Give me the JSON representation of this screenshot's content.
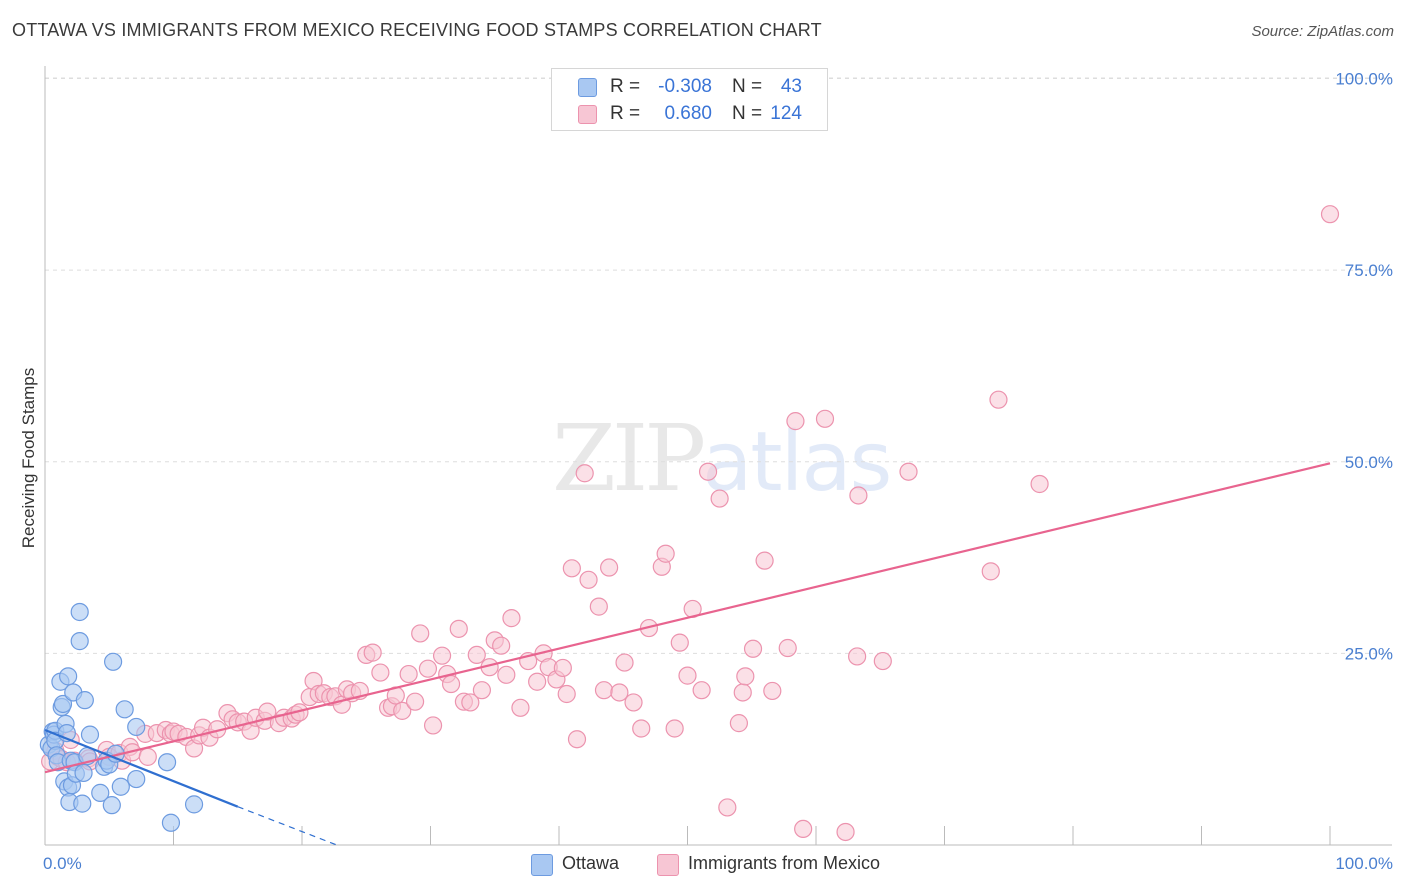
{
  "title": "OTTAWA VS IMMIGRANTS FROM MEXICO RECEIVING FOOD STAMPS CORRELATION CHART",
  "source": "Source: ZipAtlas.com",
  "watermark": {
    "zip": "ZIP",
    "atlas": "atlas"
  },
  "legend": {
    "rows": [
      {
        "name": "Ottawa",
        "r_label": "R =",
        "r_value": "-0.308",
        "n_label": "N =",
        "n_value": "43"
      },
      {
        "name": "Immigrants from Mexico",
        "r_label": "R =",
        "r_value": "0.680",
        "n_label": "N =",
        "n_value": "124"
      }
    ]
  },
  "colors": {
    "ottawa_fill": "#a9c8f2",
    "ottawa_stroke": "#6d9be0",
    "ottawa_line": "#2f6fd0",
    "mexico_fill": "#f7c6d4",
    "mexico_stroke": "#ec93ae",
    "mexico_line": "#e8648f",
    "tick": "#4a7fd0",
    "grid": "#dddddd"
  },
  "chart_data": {
    "type": "scatter",
    "title": "OTTAWA VS IMMIGRANTS FROM MEXICO RECEIVING FOOD STAMPS CORRELATION CHART",
    "xlabel": "",
    "ylabel": "Receiving Food Stamps",
    "xlim": [
      0,
      100
    ],
    "ylim": [
      0,
      100
    ],
    "x_tick_labels": {
      "left": "0.0%",
      "right": "100.0%"
    },
    "y_ticks": [
      {
        "value": 25,
        "label": "25.0%"
      },
      {
        "value": 50,
        "label": "50.0%"
      },
      {
        "value": 75,
        "label": "75.0%"
      },
      {
        "value": 100,
        "label": "100.0%"
      }
    ],
    "grid": true,
    "legend_position": "top-center",
    "series": [
      {
        "name": "Ottawa",
        "trend": {
          "x0": 0,
          "y0": 15.0,
          "x1": 15,
          "y1": 5.0,
          "dash_to_x": 22.7,
          "dash_to_y": 0
        },
        "points": [
          [
            0.3,
            13.1
          ],
          [
            0.5,
            12.6
          ],
          [
            0.6,
            14.8
          ],
          [
            0.7,
            14.4
          ],
          [
            0.8,
            14.9
          ],
          [
            0.8,
            13.6
          ],
          [
            0.9,
            11.7
          ],
          [
            1.0,
            10.8
          ],
          [
            1.2,
            21.3
          ],
          [
            1.3,
            18.0
          ],
          [
            1.4,
            18.4
          ],
          [
            1.5,
            8.3
          ],
          [
            1.6,
            15.8
          ],
          [
            1.7,
            14.6
          ],
          [
            1.8,
            22.0
          ],
          [
            1.8,
            7.5
          ],
          [
            1.9,
            5.6
          ],
          [
            2.0,
            11.0
          ],
          [
            2.1,
            7.8
          ],
          [
            2.2,
            19.9
          ],
          [
            2.3,
            10.8
          ],
          [
            2.4,
            9.3
          ],
          [
            2.7,
            30.4
          ],
          [
            2.7,
            26.6
          ],
          [
            2.9,
            5.4
          ],
          [
            3.0,
            9.4
          ],
          [
            3.1,
            18.9
          ],
          [
            3.3,
            11.6
          ],
          [
            3.5,
            14.4
          ],
          [
            4.3,
            6.8
          ],
          [
            4.6,
            10.2
          ],
          [
            4.8,
            11.0
          ],
          [
            5.0,
            10.5
          ],
          [
            5.2,
            5.2
          ],
          [
            5.3,
            23.9
          ],
          [
            5.5,
            11.9
          ],
          [
            5.9,
            7.6
          ],
          [
            6.2,
            17.7
          ],
          [
            7.1,
            8.6
          ],
          [
            7.1,
            15.4
          ],
          [
            9.5,
            10.8
          ],
          [
            9.8,
            2.9
          ],
          [
            11.6,
            5.3
          ]
        ]
      },
      {
        "name": "Immigrants from Mexico",
        "trend": {
          "x0": 0,
          "y0": 9.5,
          "x1": 100,
          "y1": 49.8
        },
        "points": [
          [
            0.4,
            10.9
          ],
          [
            0.8,
            12.3
          ],
          [
            1.0,
            11.5
          ],
          [
            1.3,
            11.2
          ],
          [
            1.7,
            10.8
          ],
          [
            2.0,
            13.7
          ],
          [
            2.3,
            11.0
          ],
          [
            3.4,
            11.3
          ],
          [
            3.5,
            10.9
          ],
          [
            4.8,
            12.4
          ],
          [
            5.0,
            11.5
          ],
          [
            5.8,
            12.0
          ],
          [
            6.0,
            11.0
          ],
          [
            6.6,
            12.8
          ],
          [
            6.8,
            12.1
          ],
          [
            7.8,
            14.5
          ],
          [
            8.0,
            11.5
          ],
          [
            8.7,
            14.6
          ],
          [
            9.4,
            15.0
          ],
          [
            9.8,
            14.5
          ],
          [
            10.0,
            14.8
          ],
          [
            10.4,
            14.5
          ],
          [
            11.0,
            14.1
          ],
          [
            11.6,
            12.6
          ],
          [
            12.0,
            14.3
          ],
          [
            12.3,
            15.3
          ],
          [
            12.8,
            14.0
          ],
          [
            13.4,
            15.1
          ],
          [
            14.2,
            17.2
          ],
          [
            14.6,
            16.4
          ],
          [
            15.0,
            16.0
          ],
          [
            15.5,
            16.1
          ],
          [
            16.0,
            14.9
          ],
          [
            16.4,
            16.6
          ],
          [
            17.1,
            16.2
          ],
          [
            17.3,
            17.4
          ],
          [
            18.2,
            15.9
          ],
          [
            18.6,
            16.6
          ],
          [
            19.2,
            16.5
          ],
          [
            19.5,
            17.0
          ],
          [
            19.8,
            17.3
          ],
          [
            20.6,
            19.3
          ],
          [
            20.9,
            21.4
          ],
          [
            21.3,
            19.7
          ],
          [
            21.7,
            19.8
          ],
          [
            22.2,
            19.3
          ],
          [
            22.6,
            19.4
          ],
          [
            23.1,
            18.3
          ],
          [
            23.5,
            20.3
          ],
          [
            23.9,
            19.8
          ],
          [
            24.5,
            20.1
          ],
          [
            25.0,
            24.8
          ],
          [
            25.5,
            25.1
          ],
          [
            26.1,
            22.5
          ],
          [
            26.7,
            17.9
          ],
          [
            27.0,
            18.1
          ],
          [
            27.3,
            19.5
          ],
          [
            27.8,
            17.5
          ],
          [
            28.3,
            22.3
          ],
          [
            28.8,
            18.7
          ],
          [
            29.2,
            27.6
          ],
          [
            29.8,
            23.0
          ],
          [
            30.2,
            15.6
          ],
          [
            30.9,
            24.7
          ],
          [
            31.3,
            22.3
          ],
          [
            31.6,
            21.0
          ],
          [
            32.2,
            28.2
          ],
          [
            32.6,
            18.7
          ],
          [
            33.1,
            18.6
          ],
          [
            33.6,
            24.8
          ],
          [
            34.0,
            20.2
          ],
          [
            34.6,
            23.2
          ],
          [
            35.0,
            26.7
          ],
          [
            35.5,
            26.0
          ],
          [
            35.9,
            22.2
          ],
          [
            36.3,
            29.6
          ],
          [
            37.0,
            17.9
          ],
          [
            37.6,
            24.0
          ],
          [
            38.3,
            21.3
          ],
          [
            38.8,
            25.0
          ],
          [
            39.2,
            23.2
          ],
          [
            39.8,
            21.6
          ],
          [
            40.3,
            23.1
          ],
          [
            40.6,
            19.7
          ],
          [
            41.0,
            36.1
          ],
          [
            41.4,
            13.8
          ],
          [
            42.0,
            48.5
          ],
          [
            42.3,
            34.6
          ],
          [
            43.1,
            31.1
          ],
          [
            43.5,
            20.2
          ],
          [
            43.9,
            36.2
          ],
          [
            44.7,
            19.9
          ],
          [
            45.1,
            23.8
          ],
          [
            45.8,
            18.6
          ],
          [
            46.4,
            15.2
          ],
          [
            47.0,
            28.3
          ],
          [
            48.0,
            36.3
          ],
          [
            48.3,
            38.0
          ],
          [
            49.0,
            15.2
          ],
          [
            49.4,
            26.4
          ],
          [
            50.0,
            22.1
          ],
          [
            50.4,
            30.8
          ],
          [
            51.1,
            20.2
          ],
          [
            51.6,
            48.7
          ],
          [
            52.5,
            45.2
          ],
          [
            53.1,
            4.9
          ],
          [
            54.0,
            15.9
          ],
          [
            54.3,
            19.9
          ],
          [
            54.5,
            22.0
          ],
          [
            55.1,
            25.6
          ],
          [
            56.0,
            37.1
          ],
          [
            56.6,
            20.1
          ],
          [
            57.8,
            25.7
          ],
          [
            58.4,
            55.3
          ],
          [
            59.0,
            2.1
          ],
          [
            60.7,
            55.6
          ],
          [
            62.3,
            1.7
          ],
          [
            63.2,
            24.6
          ],
          [
            63.3,
            45.6
          ],
          [
            65.2,
            24.0
          ],
          [
            67.2,
            48.7
          ],
          [
            73.6,
            35.7
          ],
          [
            74.2,
            58.1
          ],
          [
            77.4,
            47.1
          ],
          [
            100.0,
            82.3
          ]
        ]
      }
    ]
  }
}
